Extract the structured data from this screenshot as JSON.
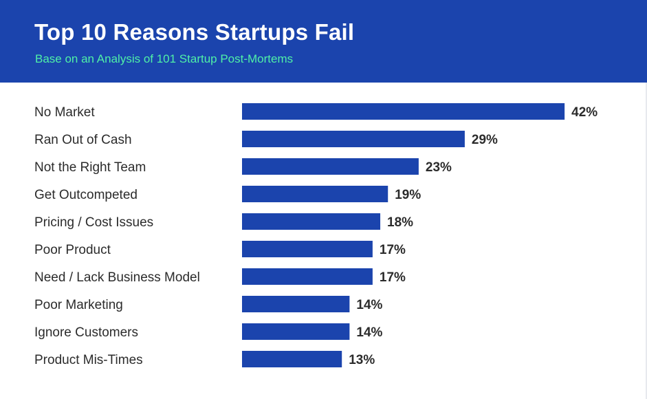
{
  "header": {
    "title": "Top 10 Reasons Startups Fail",
    "subtitle": "Base on an Analysis of 101 Startup Post-Mortems"
  },
  "colors": {
    "header_bg": "#1b44ad",
    "bar": "#1b44ad",
    "subtitle": "#4ff0a7",
    "text": "#2b2b2b"
  },
  "chart_data": {
    "type": "bar",
    "orientation": "horizontal",
    "categories": [
      "No Market",
      "Ran Out of Cash",
      "Not the Right Team",
      "Get Outcompeted",
      "Pricing / Cost Issues",
      "Poor Product",
      "Need / Lack Business Model",
      "Poor Marketing",
      "Ignore Customers",
      "Product Mis-Times"
    ],
    "values": [
      42,
      29,
      23,
      19,
      18,
      17,
      17,
      14,
      14,
      13
    ],
    "value_labels": [
      "42%",
      "29%",
      "23%",
      "19%",
      "18%",
      "17%",
      "17%",
      "14%",
      "14%",
      "13%"
    ],
    "unit": "%",
    "title": "Top 10 Reasons Startups Fail",
    "subtitle": "Base on an Analysis of 101 Startup Post-Mortems",
    "grid": false,
    "legend": "none"
  }
}
